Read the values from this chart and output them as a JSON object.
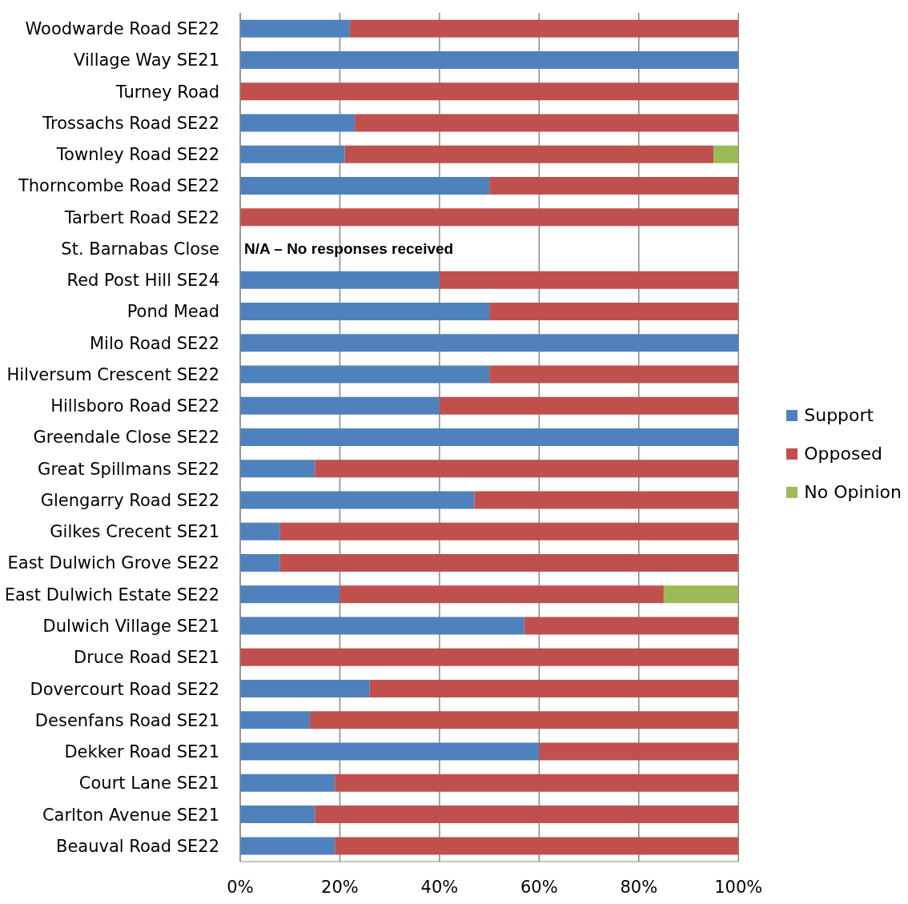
{
  "chart_data": {
    "type": "bar",
    "orientation": "horizontal",
    "stacked": true,
    "categories": [
      "Woodwarde Road SE22",
      "Village Way SE21",
      "Turney Road",
      "Trossachs Road SE22",
      "Townley Road SE22",
      "Thorncombe Road SE22",
      "Tarbert Road SE22",
      "St. Barnabas Close",
      "Red Post Hill SE24",
      "Pond Mead",
      "Milo Road SE22",
      "Hilversum Crescent SE22",
      "Hillsboro Road SE22",
      "Greendale Close SE22",
      "Great Spillmans SE22",
      "Glengarry Road SE22",
      "Gilkes Crecent SE21",
      "East Dulwich Grove SE22",
      "East Dulwich Estate SE22",
      "Dulwich Village SE21",
      "Druce Road SE21",
      "Dovercourt Road SE22",
      "Desenfans Road SE21",
      "Dekker Road SE21",
      "Court Lane SE21",
      "Carlton Avenue SE21",
      "Beauval Road SE22"
    ],
    "series": [
      {
        "name": "Support",
        "color": "#4f81bd",
        "values": [
          22,
          100,
          0,
          23,
          21,
          50,
          0,
          null,
          40,
          50,
          100,
          50,
          40,
          100,
          15,
          47,
          8,
          8,
          20,
          57,
          0,
          26,
          14,
          60,
          19,
          15,
          19
        ]
      },
      {
        "name": "Opposed",
        "color": "#c0504d",
        "values": [
          78,
          0,
          100,
          77,
          74,
          50,
          100,
          null,
          60,
          50,
          0,
          50,
          60,
          0,
          85,
          53,
          92,
          92,
          65,
          43,
          100,
          74,
          86,
          40,
          81,
          85,
          81
        ]
      },
      {
        "name": "No Opinion",
        "color": "#9bbb59",
        "values": [
          0,
          0,
          0,
          0,
          5,
          0,
          0,
          null,
          0,
          0,
          0,
          0,
          0,
          0,
          0,
          0,
          0,
          0,
          15,
          0,
          0,
          0,
          0,
          0,
          0,
          0,
          0
        ]
      }
    ],
    "xlim": [
      0,
      100
    ],
    "xticks": [
      {
        "value": 0,
        "label": "0%"
      },
      {
        "value": 20,
        "label": "20%"
      },
      {
        "value": 40,
        "label": "40%"
      },
      {
        "value": 60,
        "label": "60%"
      },
      {
        "value": 80,
        "label": "80%"
      },
      {
        "value": 100,
        "label": "100%"
      }
    ],
    "grid": "x",
    "legend": "right",
    "annotations": [
      "N/A – No responses received"
    ]
  }
}
